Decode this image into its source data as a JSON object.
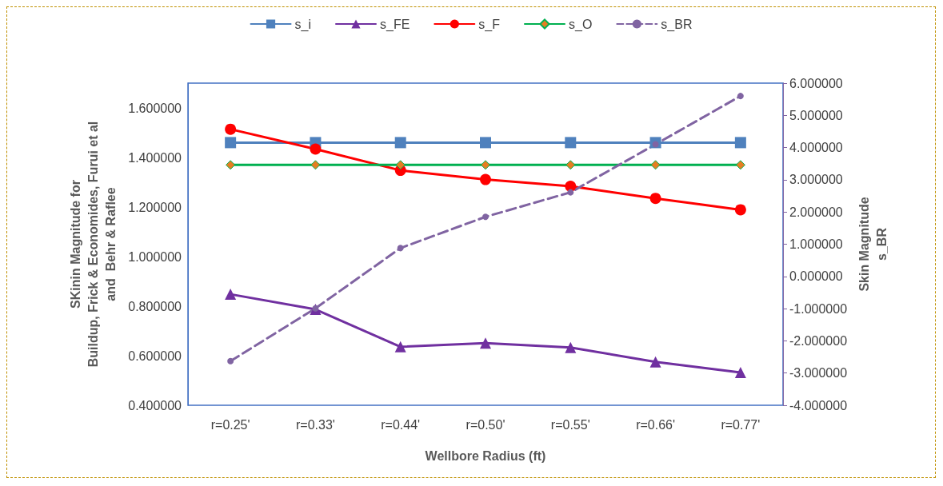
{
  "chart_data": {
    "type": "line",
    "xlabel": "Wellbore Radius (ft)",
    "ylabel": "SKinin Magnitude for\nBuildup, Frick & Economides, Furui et al\nand  Behr & Raflee",
    "y2label": "Skin Magnitude\ns_BR",
    "categories": [
      "r=0.25'",
      "r=0.33'",
      "r=0.44'",
      "r=0.50'",
      "r=0.55'",
      "r=0.66'",
      "r=0.77'"
    ],
    "series": [
      {
        "name": "s_i",
        "color": "#4f81bd",
        "marker": "square",
        "values": [
          1.46,
          1.46,
          1.46,
          1.46,
          1.46,
          1.46,
          1.46
        ]
      },
      {
        "name": "s_FE",
        "color": "#7030a0",
        "marker": "triangle",
        "values": [
          0.848,
          0.787,
          0.636,
          0.651,
          0.633,
          0.575,
          0.532
        ]
      },
      {
        "name": "s_F",
        "color": "#ff0000",
        "marker": "circle",
        "values": [
          1.514,
          1.434,
          1.348,
          1.311,
          1.284,
          1.235,
          1.189
        ]
      },
      {
        "name": "s_O",
        "color": "#00b050",
        "marker": "diamond",
        "values": [
          1.37,
          1.37,
          1.37,
          1.37,
          1.37,
          1.37,
          1.37
        ]
      },
      {
        "name": "s_BR",
        "color": "#8064a2",
        "marker": "circle",
        "line_style": "dashed",
        "axis": "y2",
        "values": [
          -2.63,
          -0.99,
          0.88,
          1.85,
          2.61,
          4.1,
          5.6
        ]
      }
    ],
    "ylim": [
      0.4,
      1.7
    ],
    "yticks": [
      {
        "value": 0.4,
        "label": "0.400000"
      },
      {
        "value": 0.6,
        "label": "0.600000"
      },
      {
        "value": 0.8,
        "label": "0.800000"
      },
      {
        "value": 1.0,
        "label": "1.000000"
      },
      {
        "value": 1.2,
        "label": "1.200000"
      },
      {
        "value": 1.4,
        "label": "1.400000"
      },
      {
        "value": 1.6,
        "label": "1.600000"
      }
    ],
    "y2lim": [
      -4,
      6
    ],
    "y2ticks": [
      {
        "value": -4,
        "label": "-4.000000"
      },
      {
        "value": -3,
        "label": "-3.000000"
      },
      {
        "value": -2,
        "label": "-2.000000"
      },
      {
        "value": -1,
        "label": "-1.000000"
      },
      {
        "value": 0,
        "label": "0.000000"
      },
      {
        "value": 1,
        "label": "1.000000"
      },
      {
        "value": 2,
        "label": "2.000000"
      },
      {
        "value": 3,
        "label": "3.000000"
      },
      {
        "value": 4,
        "label": "4.000000"
      },
      {
        "value": 5,
        "label": "5.000000"
      },
      {
        "value": 6,
        "label": "6.000000"
      }
    ],
    "legend": "top",
    "grid": false
  }
}
